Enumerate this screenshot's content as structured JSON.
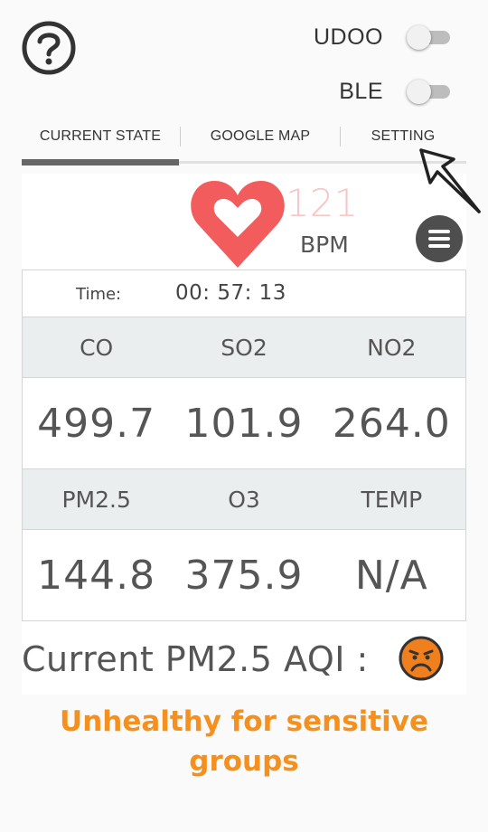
{
  "toggles": {
    "udoo": {
      "label": "UDOO",
      "on": false
    },
    "ble": {
      "label": "BLE",
      "on": false
    }
  },
  "tabs": [
    {
      "label": "CURRENT STATE",
      "active": true
    },
    {
      "label": "GOOGLE MAP",
      "active": false
    },
    {
      "label": "SETTING",
      "active": false
    }
  ],
  "heart_rate": {
    "value": "121",
    "unit": "BPM"
  },
  "time": {
    "label": "Time:",
    "value": "00: 57: 13"
  },
  "sensors": {
    "row1": {
      "headers": [
        "CO",
        "SO2",
        "NO2"
      ],
      "values": [
        "499.7",
        "101.9",
        "264.0"
      ]
    },
    "row2": {
      "headers": [
        "PM2.5",
        "O3",
        "TEMP"
      ],
      "values": [
        "144.8",
        "375.9",
        "N/A"
      ]
    }
  },
  "aqi": {
    "label": "Current PM2.5 AQI :",
    "status_line1": "Unhealthy for sensitive",
    "status_line2": "groups",
    "status_color": "#f5901e",
    "face_icon": "sad-face-icon"
  },
  "icons": {
    "help": "help-circle-icon",
    "heart": "heart-icon",
    "menu": "menu-icon",
    "cursor": "cursor-arrow-icon"
  },
  "colors": {
    "heart": "#f25c5c",
    "bpm_value": "#f7c6c6",
    "tab_indicator": "#666666",
    "header_bg": "#ebeeee",
    "face": "#f07f1e"
  }
}
